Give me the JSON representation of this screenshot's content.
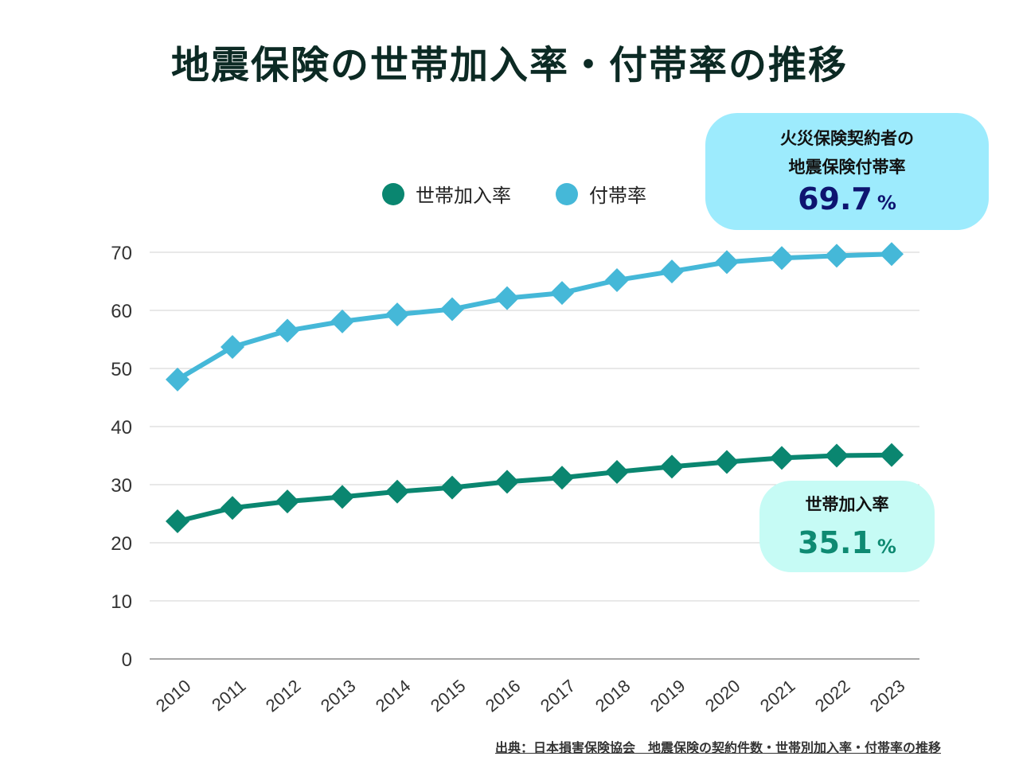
{
  "title": "地震保険の世帯加入率・付帯率の推移",
  "legend": [
    {
      "label": "世帯加入率",
      "color": "#0a8670"
    },
    {
      "label": "付帯率",
      "color": "#45b8d8"
    }
  ],
  "callouts": {
    "attach": {
      "line1": "火災保険契約者の",
      "line2": "地震保険付帯率",
      "value": "69.7",
      "unit": "%"
    },
    "household": {
      "label": "世帯加入率",
      "value": "35.1",
      "unit": "%"
    }
  },
  "source": "出典：日本損害保険協会　地震保険の契約件数・世帯別加入率・付帯率の推移",
  "chart_data": {
    "type": "line",
    "title": "地震保険の世帯加入率・付帯率の推移",
    "x": [
      "2010",
      "2011",
      "2012",
      "2013",
      "2014",
      "2015",
      "2016",
      "2017",
      "2018",
      "2019",
      "2020",
      "2021",
      "2022",
      "2023"
    ],
    "series": [
      {
        "name": "世帯加入率",
        "color": "#0a8670",
        "values": [
          23.7,
          26.0,
          27.1,
          27.9,
          28.8,
          29.5,
          30.5,
          31.2,
          32.2,
          33.1,
          33.9,
          34.6,
          35.0,
          35.1
        ]
      },
      {
        "name": "付帯率",
        "color": "#45b8d8",
        "values": [
          48.1,
          53.7,
          56.5,
          58.1,
          59.3,
          60.2,
          62.1,
          63.0,
          65.2,
          66.7,
          68.3,
          69.0,
          69.4,
          69.7
        ]
      }
    ],
    "yticks": [
      "0",
      "10",
      "20",
      "30",
      "40",
      "50",
      "60",
      "70"
    ],
    "ylim": [
      0,
      70
    ],
    "grid": true,
    "legend_position": "top"
  }
}
